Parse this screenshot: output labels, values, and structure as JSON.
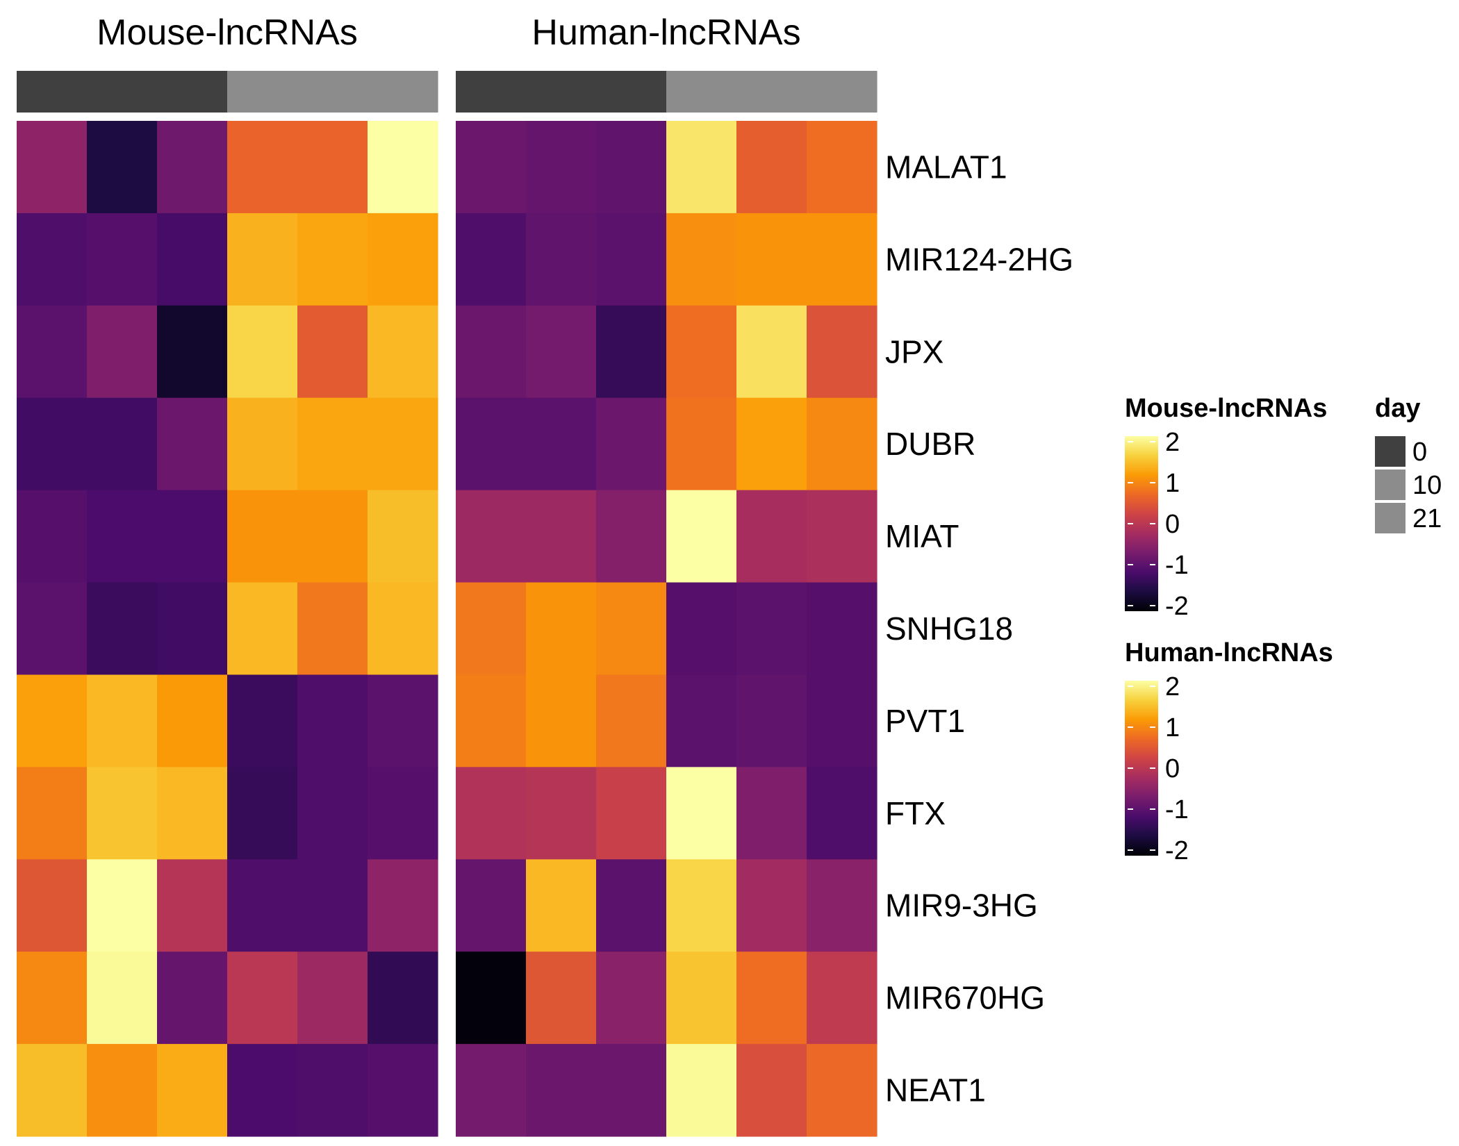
{
  "chart_data": {
    "type": "heatmap",
    "rows": [
      "MALAT1",
      "MIR124-2HG",
      "JPX",
      "DUBR",
      "MIAT",
      "SNHG18",
      "PVT1",
      "FTX",
      "MIR9-3HG",
      "MIR670HG",
      "NEAT1"
    ],
    "column_annotation": {
      "name": "day",
      "columns": [
        0,
        0,
        0,
        10,
        10,
        21
      ]
    },
    "panels": [
      {
        "title": "Mouse-lncRNAs",
        "values": [
          [
            -0.45,
            -1.55,
            -0.75,
            0.6,
            0.6,
            2.05
          ],
          [
            -1.05,
            -1.0,
            -1.15,
            1.3,
            1.2,
            1.15
          ],
          [
            -0.95,
            -0.6,
            -1.7,
            1.6,
            0.5,
            1.35
          ],
          [
            -1.2,
            -1.2,
            -0.8,
            1.3,
            1.2,
            1.2
          ],
          [
            -1.0,
            -1.1,
            -1.1,
            1.05,
            1.05,
            1.4
          ],
          [
            -0.95,
            -1.25,
            -1.2,
            1.35,
            0.8,
            1.35
          ],
          [
            1.15,
            1.35,
            1.1,
            -1.25,
            -1.05,
            -0.95
          ],
          [
            0.85,
            1.45,
            1.35,
            -1.3,
            -1.05,
            -1.0
          ],
          [
            0.45,
            2.05,
            -0.05,
            -1.05,
            -1.05,
            -0.45
          ],
          [
            0.95,
            1.95,
            -0.85,
            0.0,
            -0.3,
            -1.35
          ],
          [
            1.4,
            1.0,
            1.25,
            -1.1,
            -1.05,
            -1.0
          ]
        ]
      },
      {
        "title": "Human-lncRNAs",
        "values": [
          [
            -0.8,
            -0.85,
            -0.9,
            1.75,
            0.55,
            0.7
          ],
          [
            -1.05,
            -0.9,
            -0.95,
            1.0,
            1.05,
            1.05
          ],
          [
            -0.8,
            -0.7,
            -1.3,
            0.7,
            1.7,
            0.4
          ],
          [
            -0.95,
            -0.95,
            -0.8,
            0.75,
            1.15,
            0.95
          ],
          [
            -0.3,
            -0.3,
            -0.55,
            2.15,
            -0.2,
            -0.15
          ],
          [
            0.8,
            1.05,
            0.95,
            -1.0,
            -0.95,
            -1.0
          ],
          [
            0.85,
            1.05,
            0.8,
            -0.95,
            -0.9,
            -1.0
          ],
          [
            -0.1,
            -0.05,
            0.15,
            2.15,
            -0.6,
            -1.05
          ],
          [
            -0.85,
            1.35,
            -0.95,
            1.6,
            -0.25,
            -0.5
          ],
          [
            -1.95,
            0.45,
            -0.5,
            1.45,
            0.7,
            0.05
          ],
          [
            -0.7,
            -0.8,
            -0.8,
            1.95,
            0.35,
            0.65
          ]
        ]
      }
    ],
    "color_scale": {
      "palette": "inferno",
      "domain": [
        -2,
        2
      ],
      "ticks": [
        -2,
        -1,
        0,
        1,
        2
      ],
      "stops": [
        "#000004",
        "#1b0c41",
        "#4a0c6b",
        "#781c6d",
        "#a52c60",
        "#cf4446",
        "#ed6925",
        "#fb9b06",
        "#f7d13d",
        "#fcffa4"
      ]
    },
    "legends": [
      {
        "title": "Mouse-lncRNAs",
        "ticks": [
          "2",
          "1",
          "0",
          "-1",
          "-2"
        ]
      },
      {
        "title": "Human-lncRNAs",
        "ticks": [
          "2",
          "1",
          "0",
          "-1",
          "-2"
        ]
      },
      {
        "title": "day",
        "entries": [
          {
            "label": "0",
            "color": "#404040"
          },
          {
            "label": "10",
            "color": "#8c8c8c"
          },
          {
            "label": "21",
            "color": "#8c8c8c"
          }
        ]
      }
    ],
    "day_colors": {
      "0": "#404040",
      "10": "#8c8c8c",
      "21": "#8c8c8c"
    }
  }
}
